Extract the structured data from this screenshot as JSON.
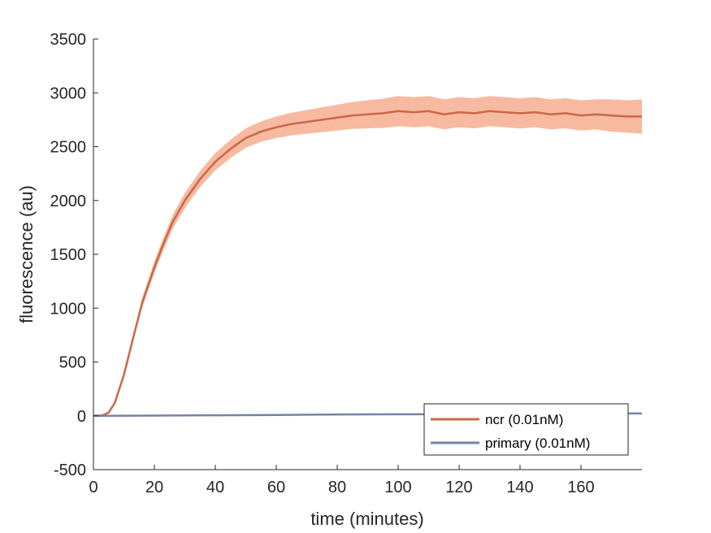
{
  "chart_data": {
    "type": "line",
    "xlabel": "time (minutes)",
    "ylabel": "fluorescence (au)",
    "xlim": [
      0,
      180
    ],
    "ylim": [
      -500,
      3500
    ],
    "xticks": [
      0,
      20,
      40,
      60,
      80,
      100,
      120,
      140,
      160
    ],
    "yticks": [
      -500,
      0,
      500,
      1000,
      1500,
      2000,
      2500,
      3000,
      3500
    ],
    "xtick_labels": [
      "0",
      "20",
      "40",
      "60",
      "80",
      "100",
      "120",
      "140",
      "160"
    ],
    "ytick_labels": [
      "-500",
      "0",
      "500",
      "1000",
      "1500",
      "2000",
      "2500",
      "3000",
      "3500"
    ],
    "grid": false,
    "legend_position": "bottom-right",
    "series": [
      {
        "name": "ncr (0.01nM)",
        "color": "#c8694a",
        "band_color": "#f7b9a0",
        "x": [
          0,
          3,
          5,
          7,
          10,
          13,
          16,
          20,
          23,
          26,
          30,
          35,
          40,
          45,
          50,
          55,
          60,
          65,
          70,
          75,
          80,
          85,
          90,
          95,
          100,
          105,
          110,
          115,
          120,
          125,
          130,
          135,
          140,
          145,
          150,
          155,
          160,
          165,
          170,
          175,
          180
        ],
        "values": [
          0,
          5,
          30,
          120,
          380,
          720,
          1050,
          1380,
          1600,
          1800,
          2000,
          2200,
          2360,
          2480,
          2580,
          2640,
          2680,
          2710,
          2730,
          2750,
          2770,
          2790,
          2800,
          2810,
          2830,
          2820,
          2830,
          2800,
          2820,
          2810,
          2830,
          2820,
          2810,
          2820,
          2800,
          2810,
          2790,
          2800,
          2790,
          2780,
          2780
        ],
        "band": [
          0,
          5,
          8,
          15,
          25,
          35,
          45,
          55,
          60,
          65,
          70,
          75,
          80,
          85,
          90,
          95,
          100,
          105,
          110,
          115,
          120,
          125,
          130,
          135,
          140,
          140,
          140,
          140,
          140,
          140,
          140,
          140,
          140,
          140,
          140,
          140,
          140,
          140,
          150,
          150,
          160
        ]
      },
      {
        "name": "primary (0.01nM)",
        "color": "#7484a4",
        "x": [
          0,
          20,
          40,
          60,
          80,
          100,
          120,
          140,
          160,
          180
        ],
        "values": [
          0,
          2,
          5,
          8,
          12,
          14,
          16,
          18,
          20,
          22
        ]
      }
    ]
  }
}
